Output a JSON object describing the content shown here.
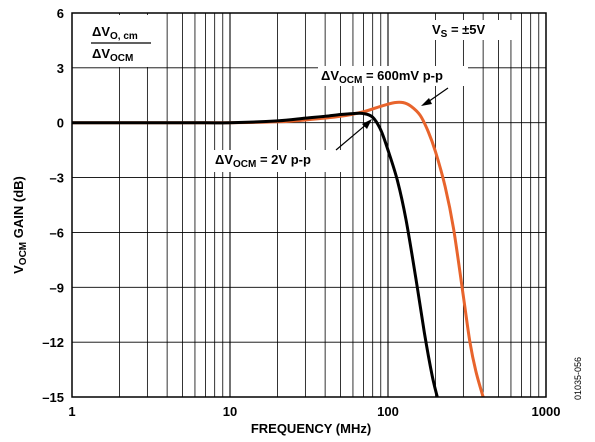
{
  "chart_data": {
    "type": "line",
    "xlabel": "FREQUENCY (MHz)",
    "ylabel_main": "V",
    "ylabel_sub": "OCM",
    "ylabel_rest": " GAIN (dB)",
    "x_scale": "log",
    "xlim": [
      1,
      1000
    ],
    "ylim": [
      -15,
      6
    ],
    "x_ticks": [
      {
        "value": 1,
        "label": "1"
      },
      {
        "value": 10,
        "label": "10"
      },
      {
        "value": 100,
        "label": "100"
      },
      {
        "value": 1000,
        "label": "1000"
      }
    ],
    "y_ticks": [
      {
        "value": 6,
        "label": "6"
      },
      {
        "value": 3,
        "label": "3"
      },
      {
        "value": 0,
        "label": "0"
      },
      {
        "value": -3,
        "label": "–3"
      },
      {
        "value": -6,
        "label": "–6"
      },
      {
        "value": -9,
        "label": "–9"
      },
      {
        "value": -12,
        "label": "–12"
      },
      {
        "value": -15,
        "label": "–15"
      }
    ],
    "grid": true,
    "series": [
      {
        "label_main": "ΔV",
        "label_sub": "OCM",
        "label_rest": " = 600mV p-p",
        "color": "#e8642c",
        "x": [
          1,
          5,
          10,
          20,
          30,
          50,
          70,
          90,
          110,
          125,
          140,
          160,
          180,
          200,
          230,
          260,
          300,
          330,
          360,
          400
        ],
        "y": [
          0,
          0,
          0,
          0.05,
          0.15,
          0.35,
          0.6,
          0.9,
          1.1,
          1.1,
          0.9,
          0.4,
          -0.5,
          -1.6,
          -3.5,
          -5.8,
          -9.5,
          -12.0,
          -13.6,
          -15
        ]
      },
      {
        "label_main": "ΔV",
        "label_sub": "OCM",
        "label_rest": " = 2V p-p",
        "color": "#000000",
        "x": [
          1,
          5,
          10,
          20,
          30,
          40,
          50,
          60,
          70,
          80,
          90,
          100,
          115,
          130,
          150,
          170,
          190,
          205
        ],
        "y": [
          0,
          0,
          0,
          0.1,
          0.25,
          0.35,
          0.45,
          0.5,
          0.5,
          0.3,
          -0.4,
          -1.5,
          -3.2,
          -5.3,
          -8.5,
          -11.5,
          -13.8,
          -15
        ]
      }
    ],
    "annotations": {
      "ratio_num_main": "ΔV",
      "ratio_num_sub": "O, cm",
      "ratio_den_main": "ΔV",
      "ratio_den_sub": "OCM",
      "vs_main": "V",
      "vs_sub": "S",
      "vs_rest": " = ±5V"
    },
    "figure_id": "01035-056"
  }
}
